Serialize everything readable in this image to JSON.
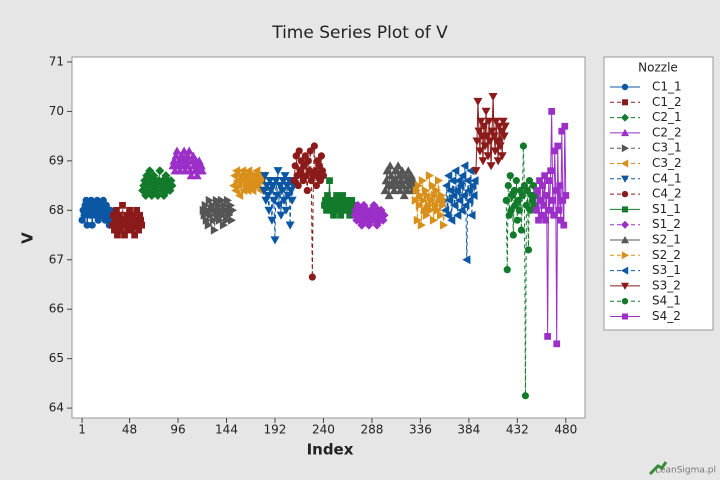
{
  "chart_data": {
    "type": "line",
    "title": "Time Series Plot of V",
    "x_label": "Index",
    "y_label": "V",
    "legend_title": "Nozzle",
    "legend_position": "right",
    "watermark": "LeanSigma.pl",
    "xlim": [
      -9,
      499
    ],
    "xticks": [
      1,
      48,
      96,
      144,
      192,
      240,
      288,
      336,
      384,
      432,
      480
    ],
    "ylim": [
      63.8,
      71.1
    ],
    "yticks": [
      64,
      65,
      66,
      67,
      68,
      69,
      70,
      71
    ],
    "series": [
      {
        "name": "C1_1",
        "color": "#0b57a4",
        "marker": "circle",
        "line_style": "solid",
        "x": [
          1,
          2,
          3,
          4,
          5,
          6,
          7,
          8,
          9,
          10,
          11,
          12,
          13,
          14,
          15,
          16,
          17,
          18,
          19,
          20,
          21,
          22,
          23,
          24,
          25,
          26,
          27,
          28,
          29,
          30
        ],
        "values": [
          67.8,
          68.0,
          67.9,
          68.1,
          68.2,
          67.7,
          68.0,
          68.1,
          67.9,
          68.2,
          67.7,
          68.0,
          68.1,
          67.9,
          68.0,
          68.2,
          67.8,
          68.1,
          68.0,
          67.9,
          68.1,
          68.2,
          68.0,
          67.8,
          68.1,
          68.0,
          67.9,
          67.7,
          68.0,
          67.8
        ]
      },
      {
        "name": "C1_2",
        "color": "#8b1a1a",
        "marker": "square",
        "line_style": "dashed",
        "x": [
          31,
          32,
          33,
          34,
          35,
          36,
          37,
          38,
          39,
          40,
          41,
          42,
          43,
          44,
          45,
          46,
          47,
          48,
          49,
          50,
          51,
          52,
          53,
          54,
          55,
          56,
          57,
          58,
          59,
          60
        ],
        "values": [
          67.7,
          67.9,
          67.6,
          67.8,
          68.0,
          67.5,
          67.7,
          67.9,
          67.6,
          67.8,
          68.1,
          67.7,
          67.5,
          67.8,
          67.9,
          67.6,
          67.7,
          68.0,
          67.8,
          67.6,
          67.9,
          67.7,
          67.5,
          67.8,
          68.0,
          67.7,
          67.6,
          67.9,
          67.8,
          67.7
        ]
      },
      {
        "name": "C2_1",
        "color": "#127a2a",
        "marker": "diamond",
        "line_style": "dashed",
        "x": [
          61,
          62,
          63,
          64,
          65,
          66,
          67,
          68,
          69,
          70,
          71,
          72,
          73,
          74,
          75,
          76,
          77,
          78,
          79,
          80,
          81,
          82,
          83,
          84,
          85,
          86,
          87,
          88,
          89,
          90
        ],
        "values": [
          68.4,
          68.5,
          68.6,
          68.3,
          68.7,
          68.5,
          68.4,
          68.8,
          68.6,
          68.3,
          68.5,
          68.7,
          68.4,
          68.6,
          68.5,
          68.3,
          68.6,
          68.8,
          68.5,
          68.4,
          68.6,
          68.3,
          68.5,
          68.7,
          68.4,
          68.6,
          68.5,
          68.4,
          68.6,
          68.5
        ]
      },
      {
        "name": "C2_2",
        "color": "#9b2fc8",
        "marker": "triangle-up",
        "line_style": "solid",
        "x": [
          91,
          92,
          93,
          94,
          95,
          96,
          97,
          98,
          99,
          100,
          101,
          102,
          103,
          104,
          105,
          106,
          107,
          108,
          109,
          110,
          111,
          112,
          113,
          114,
          115,
          116,
          117,
          118,
          119,
          120
        ],
        "values": [
          68.9,
          69.0,
          68.8,
          69.1,
          69.2,
          68.9,
          69.0,
          68.8,
          69.1,
          69.0,
          68.9,
          69.2,
          68.8,
          69.0,
          69.1,
          68.9,
          69.2,
          68.8,
          68.7,
          69.0,
          69.1,
          68.9,
          68.8,
          69.0,
          68.7,
          68.9,
          69.0,
          68.8,
          68.9,
          68.8
        ]
      },
      {
        "name": "C3_1",
        "color": "#555555",
        "marker": "triangle-right",
        "line_style": "dashed",
        "x": [
          121,
          122,
          123,
          124,
          125,
          126,
          127,
          128,
          129,
          130,
          131,
          132,
          133,
          134,
          135,
          136,
          137,
          138,
          139,
          140,
          141,
          142,
          143,
          144,
          145,
          146,
          147,
          148,
          149,
          150
        ],
        "values": [
          68.0,
          67.9,
          68.1,
          67.8,
          68.0,
          67.7,
          68.2,
          67.9,
          68.0,
          68.1,
          67.8,
          67.6,
          68.0,
          68.2,
          67.9,
          68.1,
          67.8,
          68.0,
          68.2,
          67.9,
          67.7,
          68.1,
          68.0,
          67.8,
          68.2,
          67.9,
          68.0,
          68.1,
          67.8,
          68.0
        ]
      },
      {
        "name": "C3_2",
        "color": "#d9901a",
        "marker": "triangle-left",
        "line_style": "dashed",
        "x": [
          151,
          152,
          153,
          154,
          155,
          156,
          157,
          158,
          159,
          160,
          161,
          162,
          163,
          164,
          165,
          166,
          167,
          168,
          169,
          170,
          171,
          172,
          173,
          174,
          175,
          176,
          177,
          178,
          179,
          180
        ],
        "values": [
          68.5,
          68.7,
          68.4,
          68.8,
          68.6,
          68.5,
          68.3,
          68.7,
          68.6,
          68.8,
          68.4,
          68.5,
          68.7,
          68.6,
          68.4,
          68.8,
          68.5,
          68.7,
          68.6,
          68.4,
          68.7,
          68.5,
          68.6,
          68.8,
          68.5,
          68.7,
          68.6,
          68.4,
          68.6,
          68.7
        ]
      },
      {
        "name": "C4_1",
        "color": "#0b57a4",
        "marker": "triangle-down",
        "line_style": "dashed",
        "x": [
          181,
          182,
          183,
          184,
          185,
          186,
          187,
          188,
          189,
          190,
          191,
          192,
          193,
          194,
          195,
          196,
          197,
          198,
          199,
          200,
          201,
          202,
          203,
          204,
          205,
          206,
          207,
          208,
          209,
          210
        ],
        "values": [
          68.4,
          68.7,
          68.2,
          68.5,
          68.3,
          68.0,
          68.6,
          68.4,
          67.8,
          68.5,
          68.2,
          67.4,
          68.6,
          68.3,
          68.8,
          68.1,
          68.5,
          67.9,
          68.4,
          68.6,
          68.2,
          68.7,
          68.0,
          68.5,
          68.3,
          68.6,
          67.7,
          68.4,
          68.2,
          68.5
        ]
      },
      {
        "name": "C4_2",
        "color": "#8b1a1a",
        "marker": "circle",
        "line_style": "dashed",
        "x": [
          211,
          212,
          213,
          214,
          215,
          216,
          217,
          218,
          219,
          220,
          221,
          222,
          223,
          224,
          225,
          226,
          227,
          228,
          229,
          230,
          231,
          232,
          233,
          234,
          235,
          236,
          237,
          238,
          239,
          240
        ],
        "values": [
          68.6,
          68.9,
          69.1,
          68.7,
          68.5,
          69.2,
          68.8,
          69.0,
          68.7,
          68.6,
          68.9,
          69.1,
          68.7,
          68.4,
          69.0,
          68.8,
          69.2,
          68.6,
          66.65,
          68.7,
          69.3,
          68.8,
          68.5,
          69.0,
          68.7,
          68.9,
          68.6,
          69.1,
          68.8,
          68.7
        ]
      },
      {
        "name": "S1_1",
        "color": "#127a2a",
        "marker": "square",
        "line_style": "solid",
        "x": [
          241,
          242,
          243,
          244,
          245,
          246,
          247,
          248,
          249,
          250,
          251,
          252,
          253,
          254,
          255,
          256,
          257,
          258,
          259,
          260,
          261,
          262,
          263,
          264,
          265,
          266,
          267,
          268,
          269,
          270
        ],
        "values": [
          68.1,
          68.2,
          68.0,
          68.3,
          68.1,
          68.6,
          68.0,
          68.2,
          68.1,
          67.9,
          68.2,
          68.0,
          68.3,
          68.1,
          68.0,
          68.2,
          67.9,
          68.1,
          68.3,
          68.0,
          68.2,
          68.1,
          68.0,
          68.2,
          68.1,
          67.9,
          68.1,
          68.2,
          68.0,
          68.1
        ]
      },
      {
        "name": "S1_2",
        "color": "#9b2fc8",
        "marker": "diamond",
        "line_style": "dashed",
        "x": [
          271,
          272,
          273,
          274,
          275,
          276,
          277,
          278,
          279,
          280,
          281,
          282,
          283,
          284,
          285,
          286,
          287,
          288,
          289,
          290,
          291,
          292,
          293,
          294,
          295,
          296,
          297,
          298,
          299,
          300
        ],
        "values": [
          67.9,
          68.0,
          67.8,
          68.1,
          67.9,
          67.8,
          68.0,
          67.7,
          67.9,
          68.1,
          67.8,
          67.9,
          68.0,
          67.8,
          67.7,
          67.9,
          68.0,
          67.8,
          67.9,
          68.1,
          67.8,
          67.9,
          67.7,
          68.0,
          67.9,
          67.8,
          68.0,
          67.9,
          67.8,
          67.9
        ]
      },
      {
        "name": "S2_1",
        "color": "#555555",
        "marker": "triangle-up",
        "line_style": "solid",
        "x": [
          301,
          302,
          303,
          304,
          305,
          306,
          307,
          308,
          309,
          310,
          311,
          312,
          313,
          314,
          315,
          316,
          317,
          318,
          319,
          320,
          321,
          322,
          323,
          324,
          325,
          326,
          327,
          328,
          329,
          330
        ],
        "values": [
          68.4,
          68.6,
          68.8,
          68.5,
          68.3,
          68.9,
          68.7,
          68.5,
          68.6,
          68.4,
          68.8,
          68.6,
          68.5,
          68.9,
          68.7,
          68.4,
          68.6,
          68.8,
          68.5,
          68.3,
          68.7,
          68.6,
          68.4,
          68.8,
          68.5,
          68.6,
          68.7,
          68.4,
          68.6,
          68.5
        ]
      },
      {
        "name": "S2_2",
        "color": "#d9901a",
        "marker": "triangle-right",
        "line_style": "dashed",
        "x": [
          331,
          332,
          333,
          334,
          335,
          336,
          337,
          338,
          339,
          340,
          341,
          342,
          343,
          344,
          345,
          346,
          347,
          348,
          349,
          350,
          351,
          352,
          353,
          354,
          355,
          356,
          357,
          358,
          359,
          360
        ],
        "values": [
          68.2,
          68.4,
          67.8,
          68.5,
          68.1,
          68.3,
          67.7,
          68.6,
          68.2,
          68.0,
          68.4,
          67.9,
          68.3,
          68.1,
          68.7,
          68.0,
          68.2,
          68.5,
          67.8,
          68.3,
          68.1,
          68.4,
          68.0,
          68.6,
          68.2,
          67.9,
          68.3,
          68.1,
          67.7,
          68.2
        ]
      },
      {
        "name": "S3_1",
        "color": "#0b57a4",
        "marker": "triangle-left",
        "line_style": "dashed",
        "x": [
          361,
          362,
          363,
          364,
          365,
          366,
          367,
          368,
          369,
          370,
          371,
          372,
          373,
          374,
          375,
          376,
          377,
          378,
          379,
          380,
          381,
          382,
          383,
          384,
          385,
          386,
          387,
          388,
          389,
          390
        ],
        "values": [
          68.0,
          68.5,
          67.9,
          68.7,
          68.2,
          68.4,
          67.8,
          68.6,
          68.3,
          68.1,
          68.8,
          68.4,
          67.9,
          68.6,
          68.2,
          68.5,
          68.0,
          68.7,
          68.3,
          68.9,
          68.1,
          67.0,
          68.6,
          68.4,
          68.2,
          68.8,
          67.9,
          68.5,
          68.3,
          68.6
        ]
      },
      {
        "name": "S3_2",
        "color": "#8b1a1a",
        "marker": "triangle-down",
        "line_style": "solid",
        "x": [
          391,
          392,
          393,
          394,
          395,
          396,
          397,
          398,
          399,
          400,
          401,
          402,
          403,
          404,
          405,
          406,
          407,
          408,
          409,
          410,
          411,
          412,
          413,
          414,
          415,
          416,
          417,
          418,
          419,
          420
        ],
        "values": [
          68.8,
          69.4,
          70.2,
          69.6,
          69.2,
          69.8,
          69.5,
          69.0,
          69.7,
          69.3,
          70.0,
          69.5,
          69.1,
          69.8,
          69.4,
          68.9,
          69.6,
          70.3,
          69.5,
          69.2,
          69.8,
          69.4,
          69.0,
          69.7,
          69.3,
          69.6,
          69.1,
          69.8,
          69.5,
          69.7
        ]
      },
      {
        "name": "S4_1",
        "color": "#127a2a",
        "marker": "circle",
        "line_style": "dashed",
        "x": [
          421,
          422,
          423,
          424,
          425,
          426,
          427,
          428,
          429,
          430,
          431,
          432,
          433,
          434,
          435,
          436,
          437,
          438,
          439,
          440,
          441,
          442,
          443,
          444,
          445,
          446,
          447,
          448,
          449,
          450
        ],
        "values": [
          68.2,
          66.8,
          68.5,
          67.9,
          68.7,
          68.0,
          68.3,
          67.5,
          68.4,
          68.1,
          68.6,
          67.8,
          68.2,
          68.0,
          68.4,
          67.6,
          68.3,
          69.3,
          68.5,
          64.25,
          68.1,
          68.4,
          67.2,
          68.6,
          68.0,
          68.3,
          68.2,
          68.5,
          68.1,
          68.3
        ]
      },
      {
        "name": "S4_2",
        "color": "#9b2fc8",
        "marker": "square",
        "line_style": "solid",
        "x": [
          451,
          452,
          453,
          454,
          455,
          456,
          457,
          458,
          459,
          460,
          461,
          462,
          463,
          464,
          465,
          466,
          467,
          468,
          469,
          470,
          471,
          472,
          473,
          474,
          475,
          476,
          477,
          478,
          479,
          480
        ],
        "values": [
          68.0,
          68.4,
          67.8,
          68.6,
          68.2,
          67.9,
          68.5,
          68.1,
          68.7,
          67.8,
          68.3,
          65.45,
          68.6,
          68.0,
          68.8,
          70.0,
          68.2,
          67.9,
          69.2,
          68.4,
          65.3,
          69.3,
          68.0,
          68.5,
          67.8,
          69.6,
          68.2,
          67.7,
          69.7,
          68.3
        ]
      }
    ]
  }
}
